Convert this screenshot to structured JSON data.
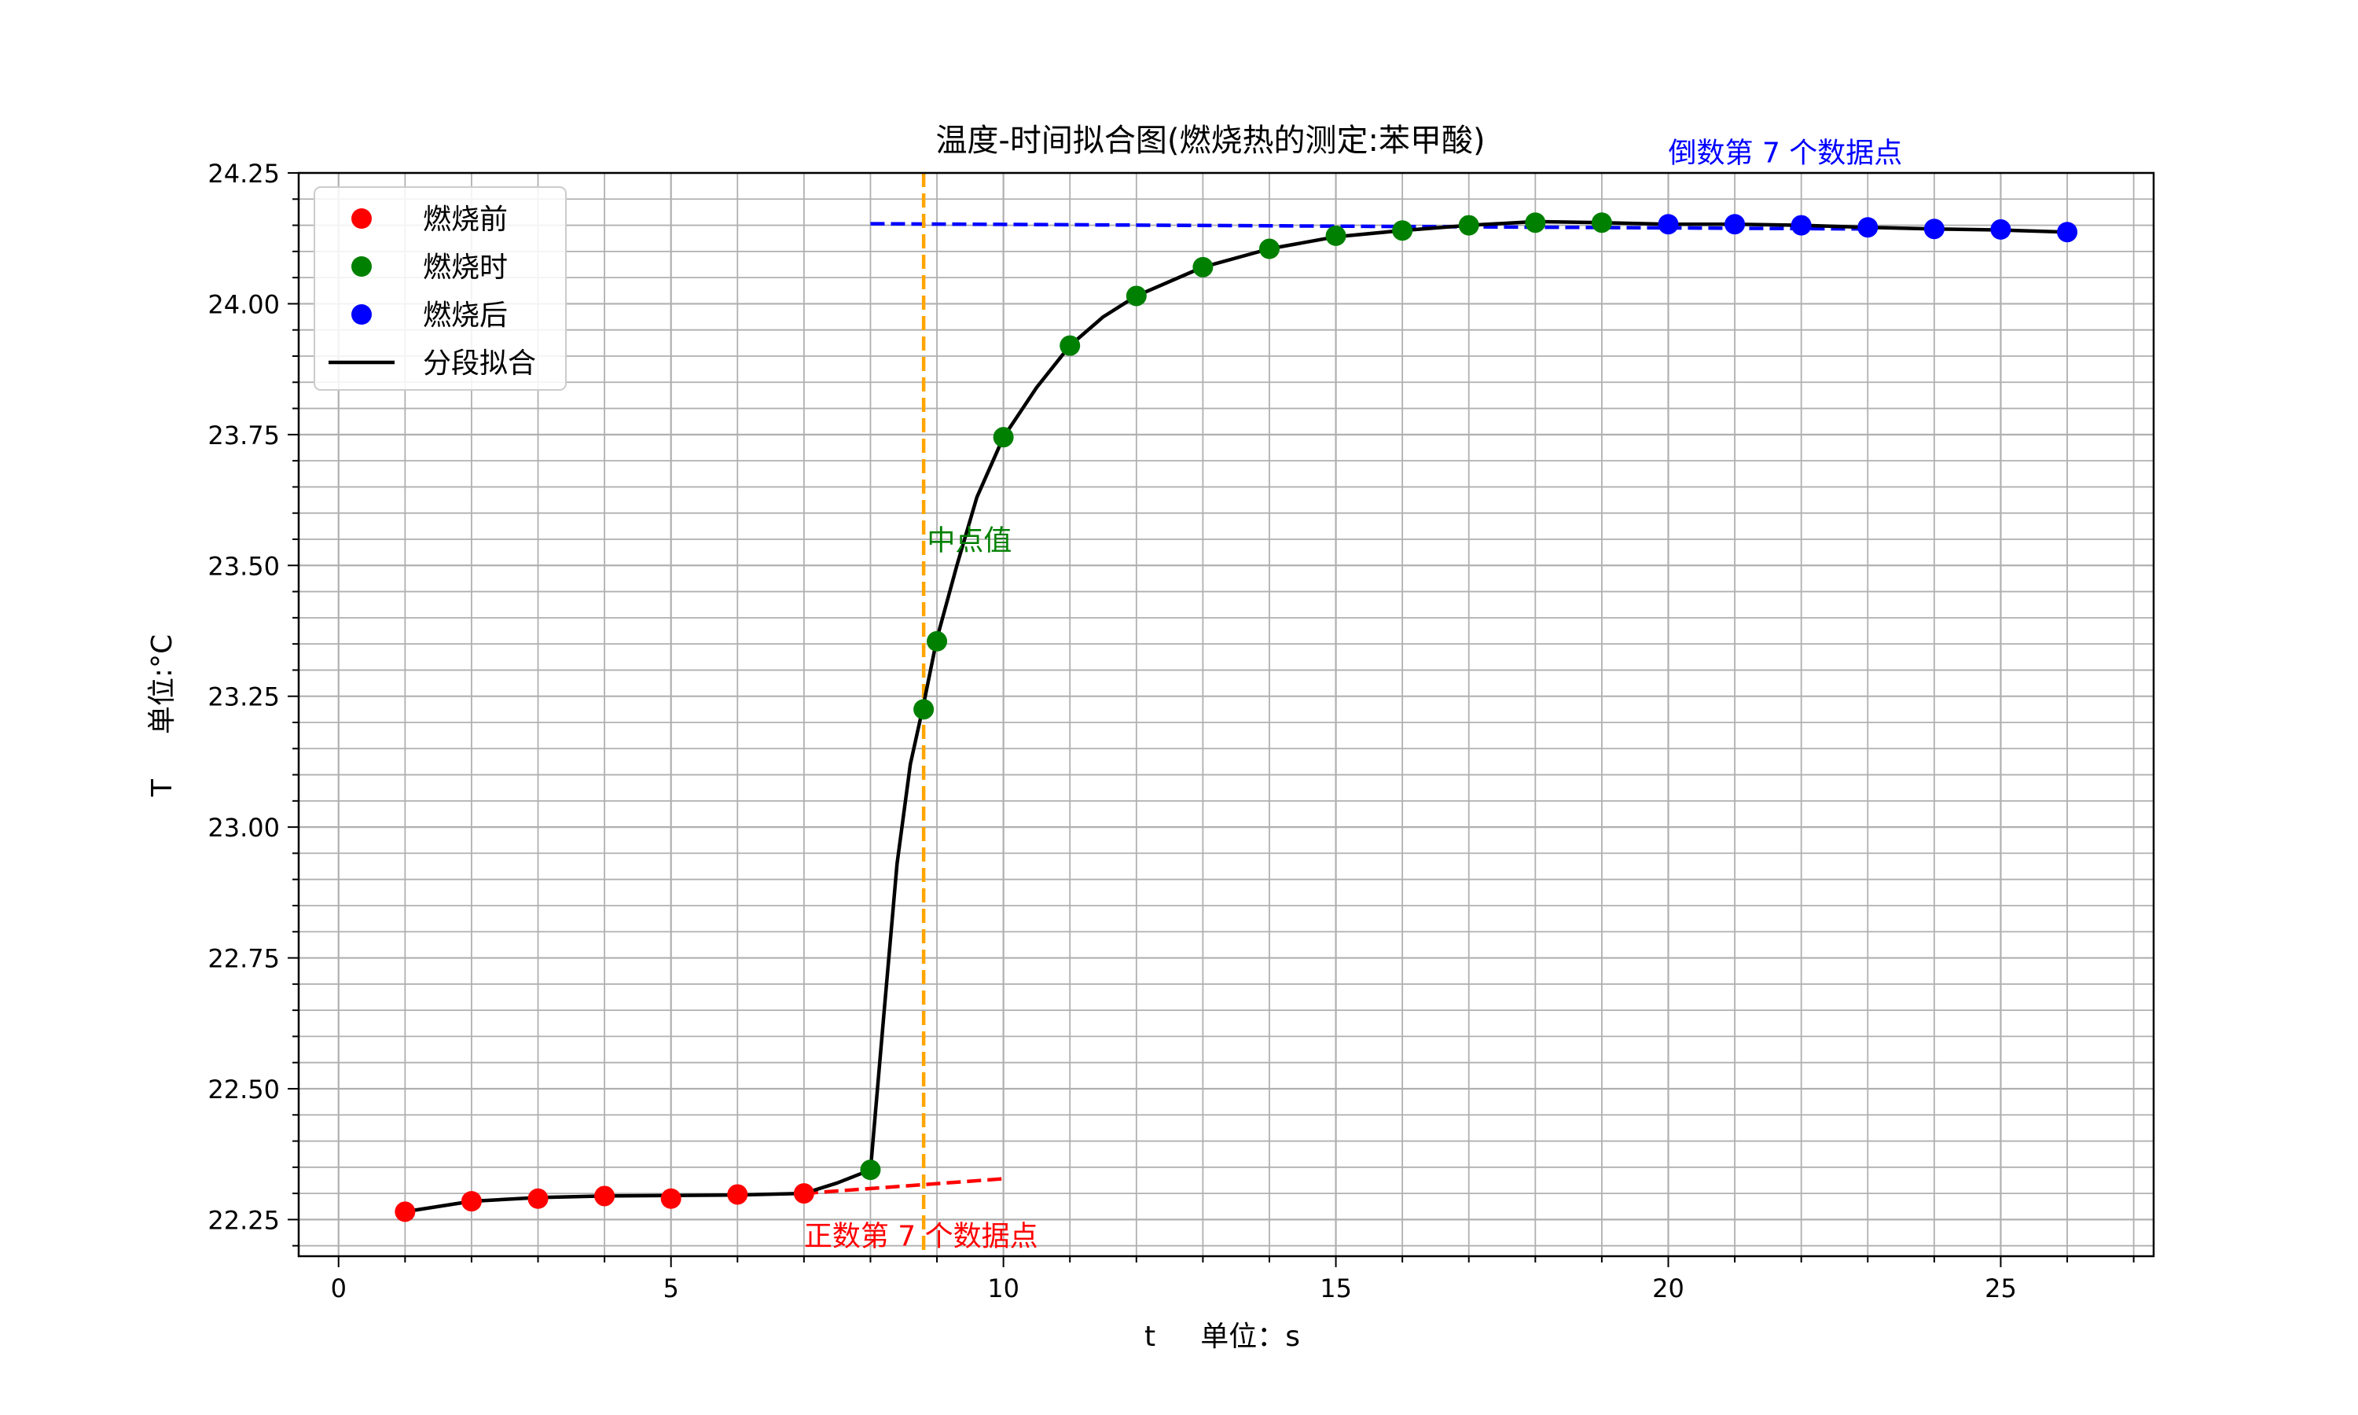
{
  "chart_data": {
    "type": "scatter",
    "title": "温度-时间拟合图(燃烧热的测定:苯甲酸)",
    "xlabel": "t     单位：s",
    "ylabel": "T     单位:°C",
    "xlim": [
      -0.6,
      27.3
    ],
    "ylim": [
      22.18,
      24.25
    ],
    "x_ticks": [
      0,
      5,
      10,
      15,
      20,
      25
    ],
    "y_ticks": [
      22.25,
      22.5,
      22.75,
      23.0,
      23.25,
      23.5,
      23.75,
      24.0,
      24.25
    ],
    "y_tick_labels": [
      "22.25",
      "22.50",
      "22.75",
      "23.00",
      "23.25",
      "23.50",
      "23.75",
      "24.00",
      "24.25"
    ],
    "grid": true,
    "legend_position": "top-left",
    "series": [
      {
        "name": "燃烧前",
        "kind": "scatter",
        "color": "#ff0000",
        "x": [
          1,
          2,
          3,
          4,
          5,
          6,
          7
        ],
        "y": [
          22.265,
          22.285,
          22.29,
          22.295,
          22.29,
          22.298,
          22.3
        ]
      },
      {
        "name": "燃烧时",
        "kind": "scatter",
        "color": "#008000",
        "x": [
          8,
          8.8,
          9,
          10,
          11,
          12,
          13,
          14,
          15,
          16,
          17,
          18,
          19
        ],
        "y": [
          22.345,
          23.225,
          23.355,
          23.745,
          23.92,
          24.015,
          24.07,
          24.105,
          24.13,
          24.14,
          24.15,
          24.155,
          24.155
        ]
      },
      {
        "name": "燃烧后",
        "kind": "scatter",
        "color": "#0000ff",
        "x": [
          20,
          21,
          22,
          23,
          24,
          25,
          26
        ],
        "y": [
          24.152,
          24.152,
          24.15,
          24.146,
          24.143,
          24.142,
          24.137
        ]
      },
      {
        "name": "分段拟合",
        "kind": "line",
        "color": "#000000",
        "x": [
          1,
          2,
          3,
          4,
          5,
          6,
          7,
          7.5,
          8,
          8.2,
          8.4,
          8.6,
          8.8,
          9,
          9.3,
          9.6,
          10,
          10.5,
          11,
          11.5,
          12,
          13,
          14,
          15,
          16,
          17,
          18,
          19,
          20,
          21,
          22,
          23,
          24,
          25,
          26
        ],
        "y": [
          22.265,
          22.285,
          22.292,
          22.295,
          22.296,
          22.297,
          22.3,
          22.32,
          22.345,
          22.64,
          22.93,
          23.12,
          23.235,
          23.36,
          23.5,
          23.63,
          23.745,
          23.84,
          23.92,
          23.975,
          24.015,
          24.07,
          24.105,
          24.128,
          24.14,
          24.15,
          24.157,
          24.155,
          24.152,
          24.152,
          24.15,
          24.146,
          24.143,
          24.141,
          24.137
        ]
      }
    ],
    "reference_lines": [
      {
        "kind": "dashed",
        "color": "#0000ff",
        "x": [
          8,
          23
        ],
        "y": [
          24.153,
          24.143
        ]
      },
      {
        "kind": "dashed",
        "color": "#ff0000",
        "x": [
          7,
          10
        ],
        "y": [
          22.3,
          22.328
        ]
      },
      {
        "kind": "vertical-dashed",
        "color": "#ffa500",
        "x": 8.8
      }
    ],
    "annotations": [
      {
        "text": "中点值",
        "color": "#008000",
        "x": 8.85,
        "y": 23.53
      },
      {
        "text": "正数第 7 个数据点",
        "color": "#ff0000",
        "x": 7,
        "y": 22.2
      },
      {
        "text": "倒数第 7 个数据点",
        "color": "#0000ff",
        "x": 20,
        "y": 24.27
      }
    ]
  }
}
